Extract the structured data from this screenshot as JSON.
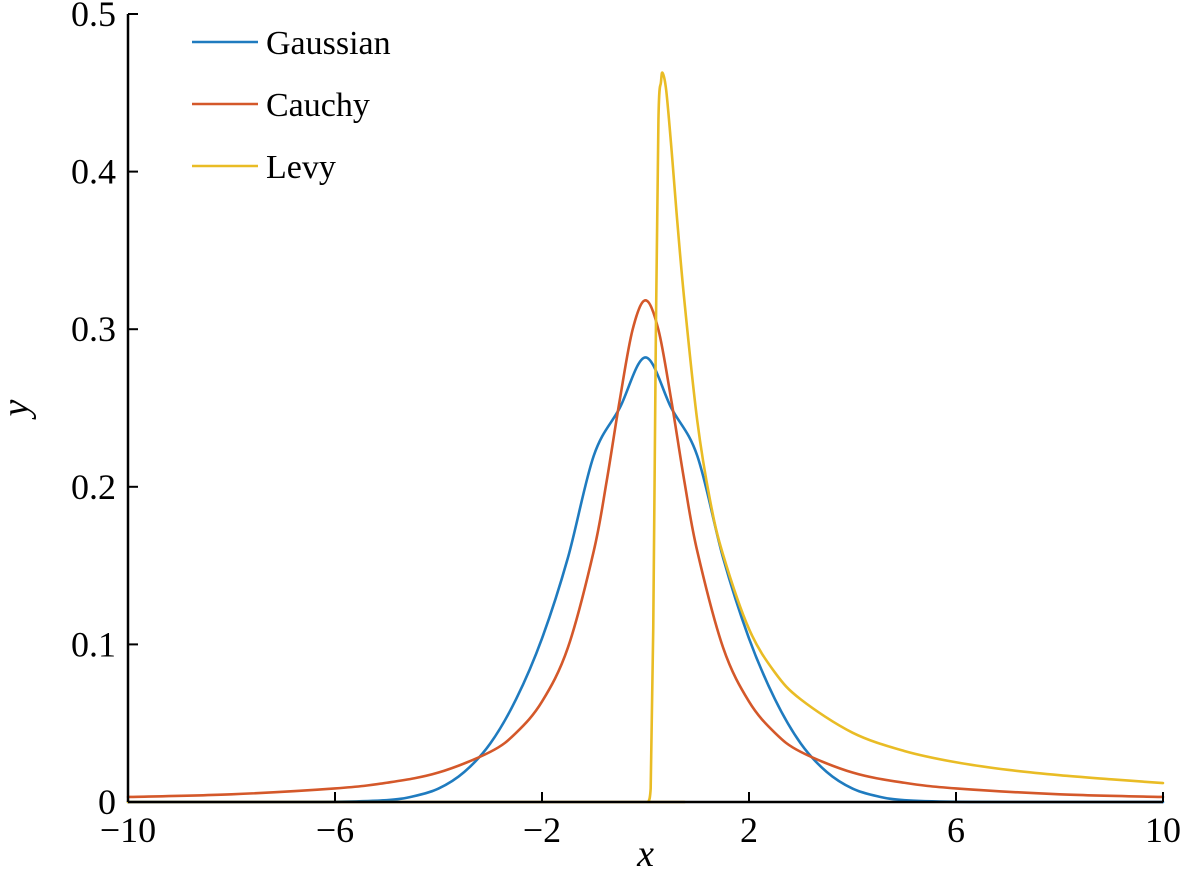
{
  "chart_data": {
    "type": "line",
    "title": "",
    "xlabel": "x",
    "ylabel": "y",
    "xlim": [
      -10,
      10
    ],
    "ylim": [
      0,
      0.5
    ],
    "xticks": [
      -10,
      -6,
      -2,
      2,
      6,
      10
    ],
    "xtick_labels": [
      "−10",
      "−6",
      "−2",
      "2",
      "6",
      "10"
    ],
    "yticks": [
      0,
      0.1,
      0.2,
      0.3,
      0.4,
      0.5
    ],
    "ytick_labels": [
      "0",
      "0.1",
      "0.2",
      "0.3",
      "0.4",
      "0.5"
    ],
    "grid": false,
    "legend_position": "top-left",
    "series": [
      {
        "name": "Gaussian",
        "color": "#1f7bbf",
        "x": [
          -10,
          -7,
          -6,
          -5,
          -4.5,
          -4,
          -3.5,
          -3,
          -2.5,
          -2,
          -1.5,
          -1,
          -0.5,
          0,
          0.5,
          1,
          1.5,
          2,
          2.5,
          3,
          3.5,
          4,
          4.5,
          5,
          6,
          7,
          10
        ],
        "y": [
          0,
          0,
          0.0001,
          0.0012,
          0.0035,
          0.0085,
          0.0191,
          0.0371,
          0.0653,
          0.1038,
          0.1549,
          0.2197,
          0.2499,
          0.2821,
          0.2499,
          0.2197,
          0.1549,
          0.1038,
          0.0653,
          0.0371,
          0.0191,
          0.0085,
          0.0035,
          0.0012,
          0.0001,
          0,
          0
        ]
      },
      {
        "name": "Cauchy",
        "color": "#d4582a",
        "x": [
          -10,
          -8,
          -6,
          -5,
          -4,
          -3,
          -2.5,
          -2,
          -1.5,
          -1,
          -0.75,
          -0.5,
          -0.25,
          0,
          0.25,
          0.5,
          0.75,
          1,
          1.5,
          2,
          2.5,
          3,
          4,
          5,
          6,
          8,
          10
        ],
        "y": [
          0.0032,
          0.0049,
          0.0086,
          0.0122,
          0.0187,
          0.0318,
          0.0439,
          0.0637,
          0.0979,
          0.1592,
          0.2037,
          0.2546,
          0.2996,
          0.3183,
          0.2996,
          0.2546,
          0.2037,
          0.1592,
          0.0979,
          0.0637,
          0.0439,
          0.0318,
          0.0187,
          0.0122,
          0.0086,
          0.0049,
          0.0032
        ]
      },
      {
        "name": "Levy",
        "color": "#e9bc25",
        "x": [
          -10,
          0,
          0.05,
          0.1,
          0.15,
          0.2,
          0.25,
          0.3,
          0.33,
          0.4,
          0.5,
          0.6,
          0.75,
          1,
          1.25,
          1.5,
          2,
          2.5,
          3,
          4,
          5,
          6,
          7,
          8,
          9,
          10
        ],
        "y": [
          0,
          0,
          0.0,
          0.0085,
          0.1106,
          0.2959,
          0.433,
          0.4571,
          0.4626,
          0.4516,
          0.4151,
          0.3739,
          0.3185,
          0.242,
          0.191,
          0.1568,
          0.1098,
          0.0822,
          0.0651,
          0.044,
          0.0324,
          0.0252,
          0.0204,
          0.017,
          0.0144,
          0.012
        ]
      }
    ]
  }
}
